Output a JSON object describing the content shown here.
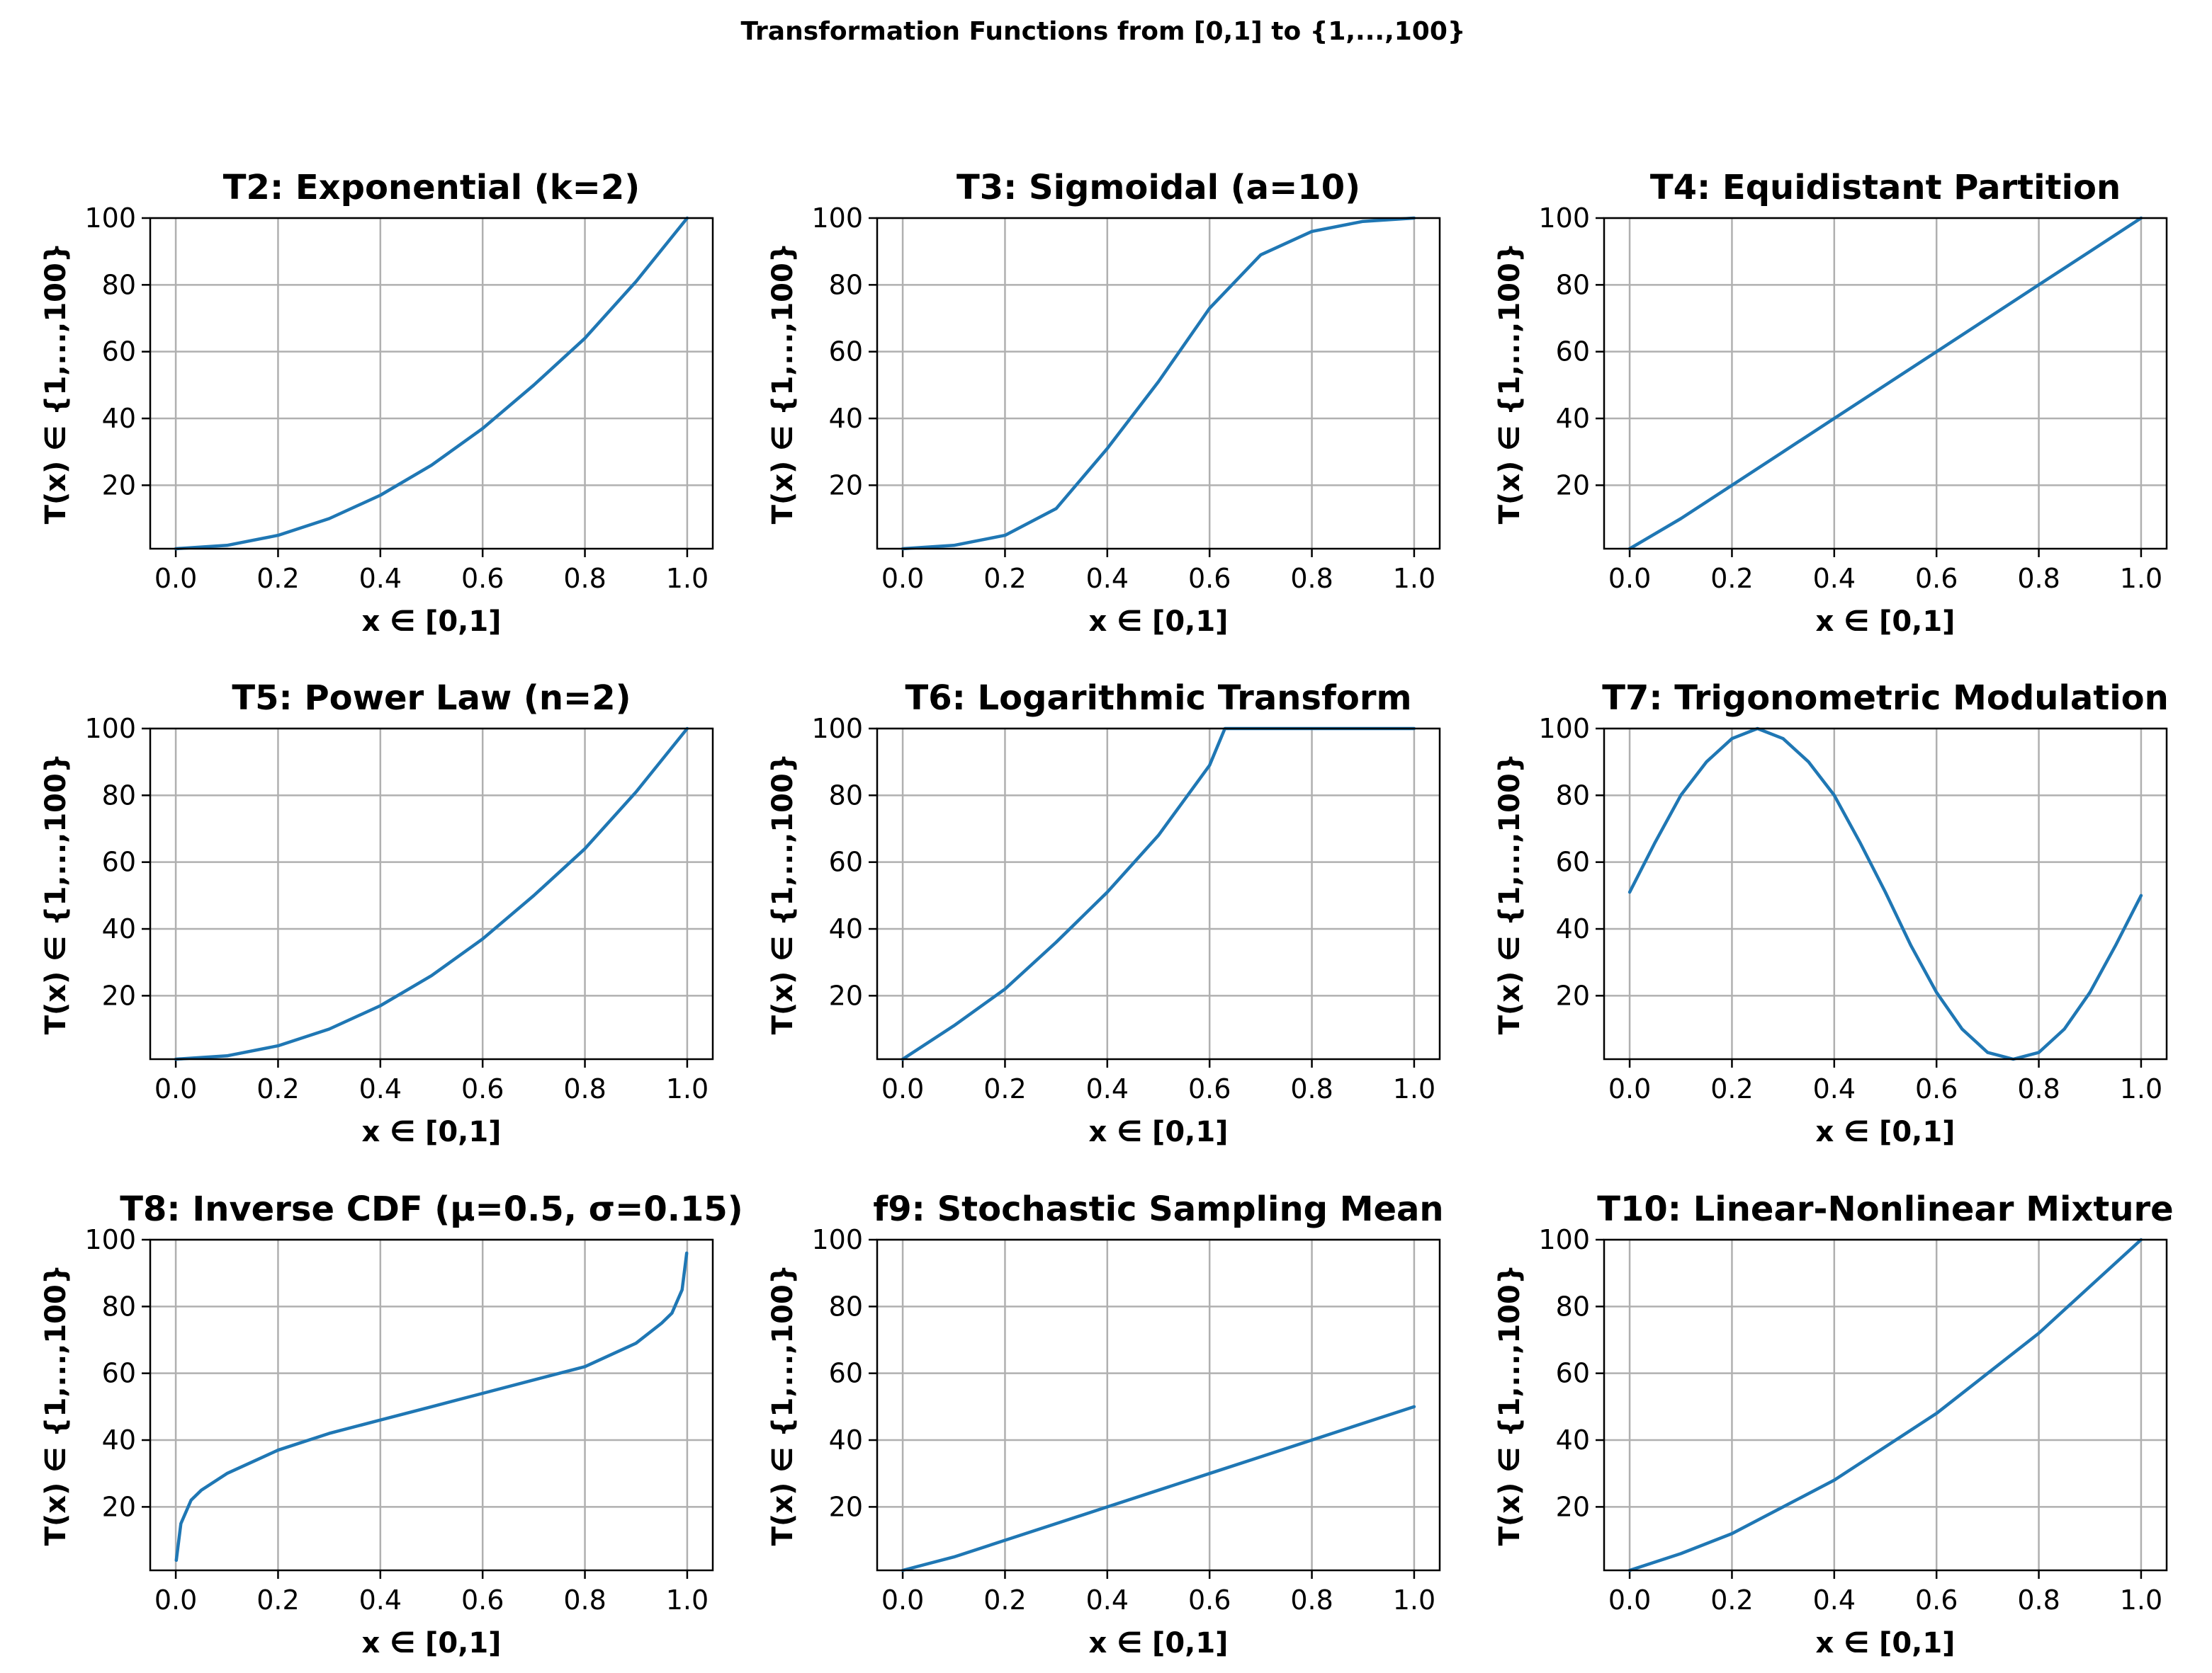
{
  "figure_title": "Transformation Functions from [0,1] to {1,...,100}",
  "colors": {
    "series": "#1f77b4",
    "grid": "#b0b0b0",
    "axes": "#000000"
  },
  "chart_data": [
    {
      "type": "line",
      "title": "T2: Exponential (k=2)",
      "xlabel": "x ∈ [0,1]",
      "ylabel": "T(x) ∈ {1,...,100}",
      "xlim": [
        -0.05,
        1.05
      ],
      "ylim": [
        1,
        100
      ],
      "xticks": [
        "0.0",
        "0.2",
        "0.4",
        "0.6",
        "0.8",
        "1.0"
      ],
      "yticks": [
        "20",
        "40",
        "60",
        "80",
        "100"
      ],
      "grid": true,
      "series": [
        {
          "name": "T2",
          "x": [
            0,
            0.1,
            0.2,
            0.3,
            0.4,
            0.5,
            0.6,
            0.7,
            0.8,
            0.9,
            1.0
          ],
          "y": [
            1,
            2,
            5,
            10,
            17,
            26,
            37,
            50,
            64,
            81,
            100
          ]
        }
      ]
    },
    {
      "type": "line",
      "title": "T3: Sigmoidal (a=10)",
      "xlabel": "x ∈ [0,1]",
      "ylabel": "T(x) ∈ {1,...,100}",
      "xlim": [
        -0.05,
        1.05
      ],
      "ylim": [
        1,
        100
      ],
      "xticks": [
        "0.0",
        "0.2",
        "0.4",
        "0.6",
        "0.8",
        "1.0"
      ],
      "yticks": [
        "20",
        "40",
        "60",
        "80",
        "100"
      ],
      "grid": true,
      "series": [
        {
          "name": "T3",
          "x": [
            0,
            0.1,
            0.2,
            0.3,
            0.4,
            0.5,
            0.6,
            0.7,
            0.8,
            0.9,
            1.0
          ],
          "y": [
            1,
            2,
            5,
            13,
            31,
            51,
            73,
            89,
            96,
            99,
            100
          ]
        }
      ]
    },
    {
      "type": "line",
      "title": "T4: Equidistant Partition",
      "xlabel": "x ∈ [0,1]",
      "ylabel": "T(x) ∈ {1,...,100}",
      "xlim": [
        -0.05,
        1.05
      ],
      "ylim": [
        1,
        100
      ],
      "xticks": [
        "0.0",
        "0.2",
        "0.4",
        "0.6",
        "0.8",
        "1.0"
      ],
      "yticks": [
        "20",
        "40",
        "60",
        "80",
        "100"
      ],
      "grid": true,
      "series": [
        {
          "name": "T4",
          "x": [
            0,
            0.1,
            0.2,
            0.3,
            0.4,
            0.5,
            0.6,
            0.7,
            0.8,
            0.9,
            1.0
          ],
          "y": [
            1,
            10,
            20,
            30,
            40,
            50,
            60,
            70,
            80,
            90,
            100
          ]
        }
      ]
    },
    {
      "type": "line",
      "title": "T5: Power Law (n=2)",
      "xlabel": "x ∈ [0,1]",
      "ylabel": "T(x) ∈ {1,...,100}",
      "xlim": [
        -0.05,
        1.05
      ],
      "ylim": [
        1,
        100
      ],
      "xticks": [
        "0.0",
        "0.2",
        "0.4",
        "0.6",
        "0.8",
        "1.0"
      ],
      "yticks": [
        "20",
        "40",
        "60",
        "80",
        "100"
      ],
      "grid": true,
      "series": [
        {
          "name": "T5",
          "x": [
            0,
            0.1,
            0.2,
            0.3,
            0.4,
            0.5,
            0.6,
            0.7,
            0.8,
            0.9,
            1.0
          ],
          "y": [
            1,
            2,
            5,
            10,
            17,
            26,
            37,
            50,
            64,
            81,
            100
          ]
        }
      ]
    },
    {
      "type": "line",
      "title": "T6: Logarithmic Transform",
      "xlabel": "x ∈ [0,1]",
      "ylabel": "T(x) ∈ {1,...,100}",
      "xlim": [
        -0.05,
        1.05
      ],
      "ylim": [
        1,
        100
      ],
      "xticks": [
        "0.0",
        "0.2",
        "0.4",
        "0.6",
        "0.8",
        "1.0"
      ],
      "yticks": [
        "20",
        "40",
        "60",
        "80",
        "100"
      ],
      "grid": true,
      "series": [
        {
          "name": "T6",
          "x": [
            0,
            0.1,
            0.2,
            0.3,
            0.4,
            0.5,
            0.6,
            0.63,
            0.7,
            0.8,
            0.9,
            1.0
          ],
          "y": [
            1,
            11,
            22,
            36,
            51,
            68,
            89,
            100,
            100,
            100,
            100,
            100
          ]
        }
      ]
    },
    {
      "type": "line",
      "title": "T7: Trigonometric Modulation",
      "xlabel": "x ∈ [0,1]",
      "ylabel": "T(x) ∈ {1,...,100}",
      "xlim": [
        -0.05,
        1.05
      ],
      "ylim": [
        1,
        100
      ],
      "xticks": [
        "0.0",
        "0.2",
        "0.4",
        "0.6",
        "0.8",
        "1.0"
      ],
      "yticks": [
        "20",
        "40",
        "60",
        "80",
        "100"
      ],
      "grid": true,
      "series": [
        {
          "name": "T7",
          "x": [
            0,
            0.05,
            0.1,
            0.15,
            0.2,
            0.25,
            0.3,
            0.35,
            0.4,
            0.45,
            0.5,
            0.55,
            0.6,
            0.65,
            0.7,
            0.75,
            0.8,
            0.85,
            0.9,
            0.95,
            1.0
          ],
          "y": [
            51,
            66,
            80,
            90,
            97,
            100,
            97,
            90,
            80,
            66,
            51,
            35,
            21,
            10,
            3,
            1,
            3,
            10,
            21,
            35,
            50
          ]
        }
      ]
    },
    {
      "type": "line",
      "title": "T8: Inverse CDF (μ=0.5, σ=0.15)",
      "xlabel": "x ∈ [0,1]",
      "ylabel": "T(x) ∈ {1,...,100}",
      "xlim": [
        -0.05,
        1.05
      ],
      "ylim": [
        1,
        100
      ],
      "xticks": [
        "0.0",
        "0.2",
        "0.4",
        "0.6",
        "0.8",
        "1.0"
      ],
      "yticks": [
        "20",
        "40",
        "60",
        "80",
        "100"
      ],
      "grid": true,
      "series": [
        {
          "name": "T8",
          "x": [
            0.001,
            0.01,
            0.03,
            0.05,
            0.1,
            0.2,
            0.3,
            0.4,
            0.5,
            0.6,
            0.7,
            0.8,
            0.9,
            0.95,
            0.97,
            0.99,
            0.999
          ],
          "y": [
            4,
            15,
            22,
            25,
            30,
            37,
            42,
            46,
            50,
            54,
            58,
            62,
            69,
            75,
            78,
            85,
            96
          ]
        }
      ]
    },
    {
      "type": "line",
      "title": "f9: Stochastic Sampling Mean",
      "xlabel": "x ∈ [0,1]",
      "ylabel": "T(x) ∈ {1,...,100}",
      "xlim": [
        -0.05,
        1.05
      ],
      "ylim": [
        1,
        100
      ],
      "xticks": [
        "0.0",
        "0.2",
        "0.4",
        "0.6",
        "0.8",
        "1.0"
      ],
      "yticks": [
        "20",
        "40",
        "60",
        "80",
        "100"
      ],
      "grid": true,
      "series": [
        {
          "name": "f9",
          "x": [
            0,
            0.1,
            0.2,
            0.3,
            0.4,
            0.5,
            0.6,
            0.7,
            0.8,
            0.9,
            1.0
          ],
          "y": [
            1,
            5,
            10,
            15,
            20,
            25,
            30,
            35,
            40,
            45,
            50
          ]
        }
      ]
    },
    {
      "type": "line",
      "title": "T10: Linear-Nonlinear Mixture",
      "xlabel": "x ∈ [0,1]",
      "ylabel": "T(x) ∈ {1,...,100}",
      "xlim": [
        -0.05,
        1.05
      ],
      "ylim": [
        1,
        100
      ],
      "xticks": [
        "0.0",
        "0.2",
        "0.4",
        "0.6",
        "0.8",
        "1.0"
      ],
      "yticks": [
        "20",
        "40",
        "60",
        "80",
        "100"
      ],
      "grid": true,
      "series": [
        {
          "name": "T10",
          "x": [
            0,
            0.1,
            0.2,
            0.3,
            0.4,
            0.5,
            0.6,
            0.7,
            0.8,
            0.9,
            1.0
          ],
          "y": [
            1,
            6,
            12,
            20,
            28,
            38,
            48,
            60,
            72,
            86,
            100
          ]
        }
      ]
    }
  ]
}
